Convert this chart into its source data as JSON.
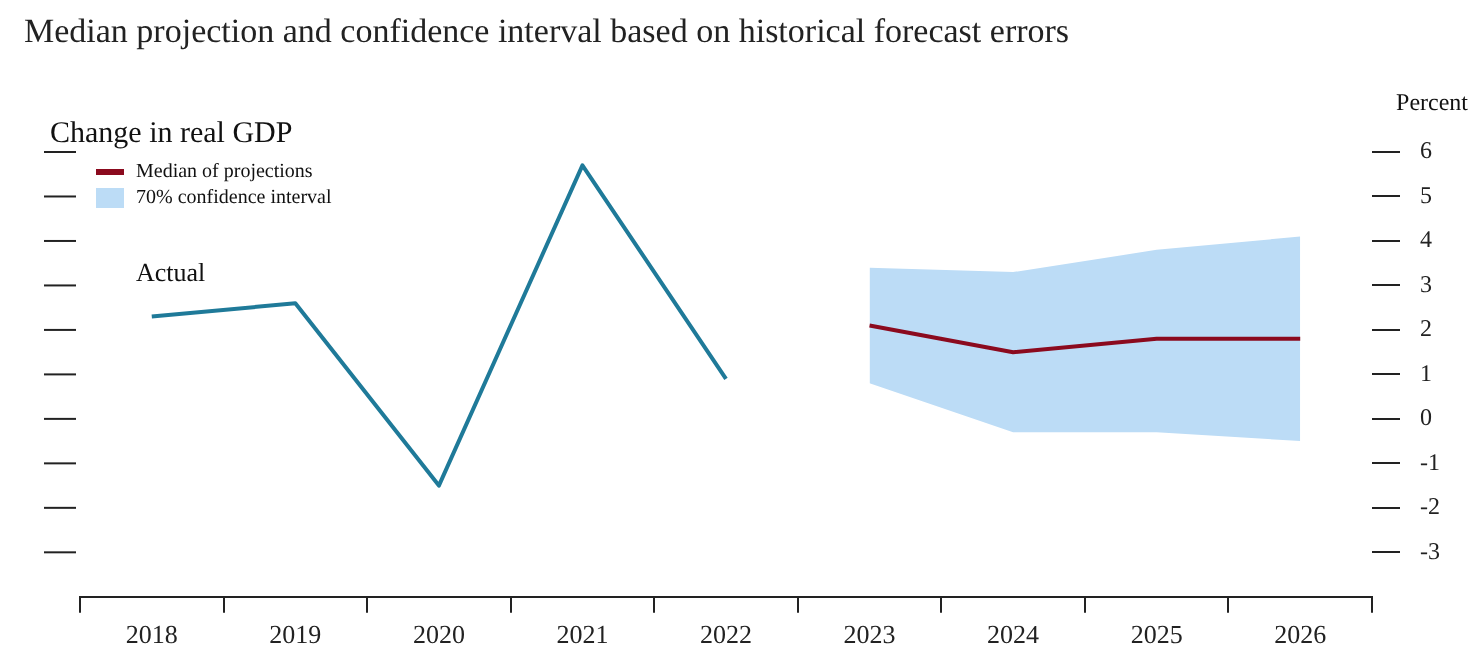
{
  "chart_data": {
    "type": "line",
    "title": "Median projection and confidence interval based on historical forecast errors",
    "subtitle": "Change in real GDP",
    "ylabel": "Percent",
    "categories": [
      "2018",
      "2019",
      "2020",
      "2021",
      "2022",
      "2023",
      "2024",
      "2025",
      "2026"
    ],
    "series": [
      {
        "color": "#1f7a99",
        "values": [
          2.3,
          2.6,
          -1.5,
          5.7,
          0.9,
          null,
          null,
          null,
          null
        ]
      },
      {
        "name": "Median of projections",
        "color": "#8b0a1e",
        "values": [
          null,
          null,
          null,
          null,
          null,
          2.1,
          1.5,
          1.8,
          1.8
        ]
      },
      {
        "name": "70% confidence interval",
        "color": "#bcdcf6",
        "values": [
          null,
          null,
          null,
          null,
          null,
          null,
          null,
          null,
          null
        ],
        "lower": [
          null,
          null,
          null,
          null,
          null,
          0.8,
          -0.3,
          -0.3,
          -0.5
        ],
        "upper": [
          null,
          null,
          null,
          null,
          null,
          3.4,
          3.3,
          3.8,
          4.1
        ]
      }
    ],
    "annotations": [
      "Actual"
    ],
    "ylim": [
      -4,
      6
    ],
    "yticks": [
      -3,
      -2,
      -1,
      0,
      1,
      2,
      3,
      4,
      5,
      6
    ],
    "grid": false,
    "legend": "top left"
  }
}
